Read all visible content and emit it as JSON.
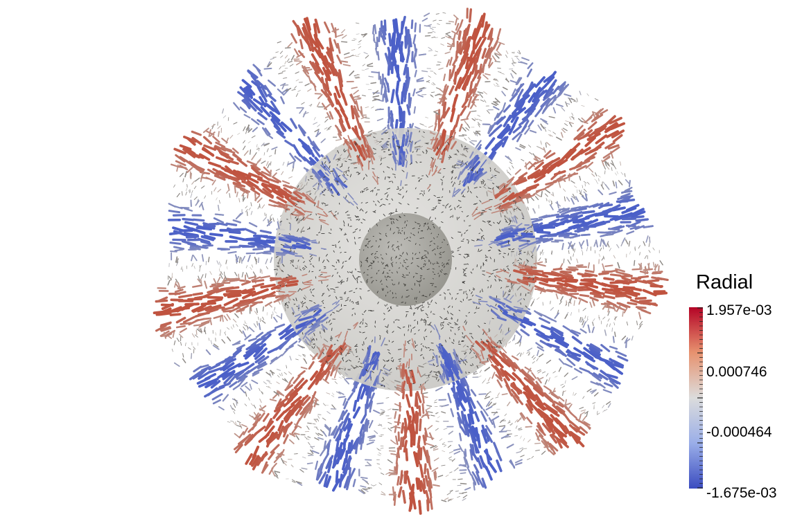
{
  "legend": {
    "title": "Radial",
    "labels": [
      "1.957e-03",
      "0.000746",
      "-0.000464",
      "-1.675e-03"
    ],
    "values": [
      0.001957,
      0.000746,
      -0.000464,
      -0.001675
    ],
    "range": [
      -0.001675,
      0.001957
    ],
    "colors": {
      "high": "#b40426",
      "mid": "#dddddd",
      "low": "#3b4cc0"
    }
  },
  "scene": {
    "description_colors": {
      "inner_sphere": "#a9a8a3",
      "outer_shell": "#d6d5d1"
    },
    "upwelling_sectors": 9
  }
}
